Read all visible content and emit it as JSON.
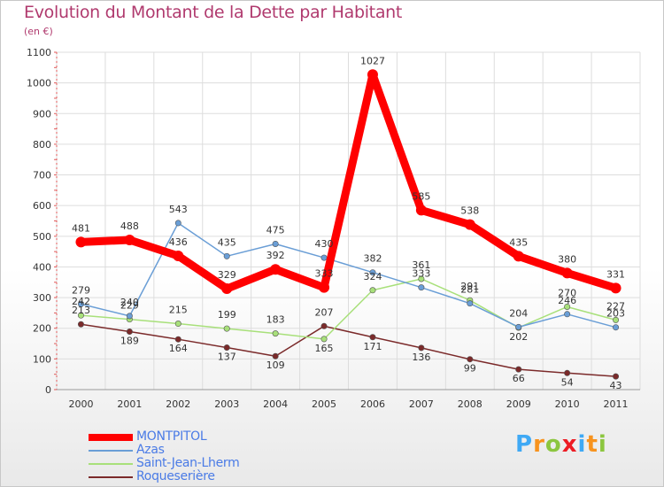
{
  "title": "Evolution du Montant de la Dette par Habitant",
  "unit_label": "(en €)",
  "brand": {
    "letters": [
      "P",
      "r",
      "o",
      "x",
      "i",
      "t",
      "i"
    ],
    "colors": [
      "#3fa9f5",
      "#f7931e",
      "#8cc63f",
      "#ed1c24",
      "#3fa9f5",
      "#f7931e",
      "#8cc63f"
    ]
  },
  "chart_data": {
    "type": "line",
    "x": [
      "2000",
      "2001",
      "2002",
      "2003",
      "2004",
      "2005",
      "2006",
      "2007",
      "2008",
      "2009",
      "2010",
      "2011"
    ],
    "ylim": [
      0,
      1100
    ],
    "yticks": [
      "0",
      "100",
      "200",
      "300",
      "400",
      "500",
      "600",
      "700",
      "800",
      "900",
      "1000",
      "1100"
    ],
    "grid": true,
    "legend_position": "bottom-left",
    "series": [
      {
        "name": "MONTPITOL",
        "color": "#ff0000",
        "values": [
          481,
          488,
          436,
          329,
          392,
          333,
          1027,
          585,
          538,
          435,
          380,
          331
        ],
        "labels": [
          "481",
          "488",
          "436",
          "329",
          "392",
          "333",
          "1027",
          "585",
          "538",
          "435",
          "380",
          "331"
        ]
      },
      {
        "name": "Azas",
        "color": "#6a9ed6",
        "values": [
          279,
          240,
          543,
          435,
          475,
          430,
          382,
          333,
          281,
          204,
          246,
          203
        ],
        "labels": [
          "279",
          "240",
          "543",
          "435",
          "475",
          "430",
          "382",
          "333",
          "281",
          "204",
          "246",
          "203"
        ]
      },
      {
        "name": "Saint-Jean-Lherm",
        "color": "#a8e07a",
        "values": [
          242,
          229,
          215,
          199,
          183,
          165,
          324,
          361,
          291,
          202,
          270,
          227
        ],
        "labels": [
          "242",
          "229",
          "215",
          "199",
          "183",
          "165",
          "324",
          "361",
          "291",
          "202",
          "270",
          "227"
        ]
      },
      {
        "name": "Roqueserière",
        "color": "#7b2a2a",
        "values": [
          213,
          189,
          164,
          137,
          109,
          207,
          171,
          136,
          99,
          66,
          54,
          43
        ],
        "labels": [
          "213",
          "189",
          "164",
          "137",
          "109",
          "207",
          "171",
          "136",
          "99",
          "66",
          "54",
          "43"
        ]
      }
    ]
  }
}
